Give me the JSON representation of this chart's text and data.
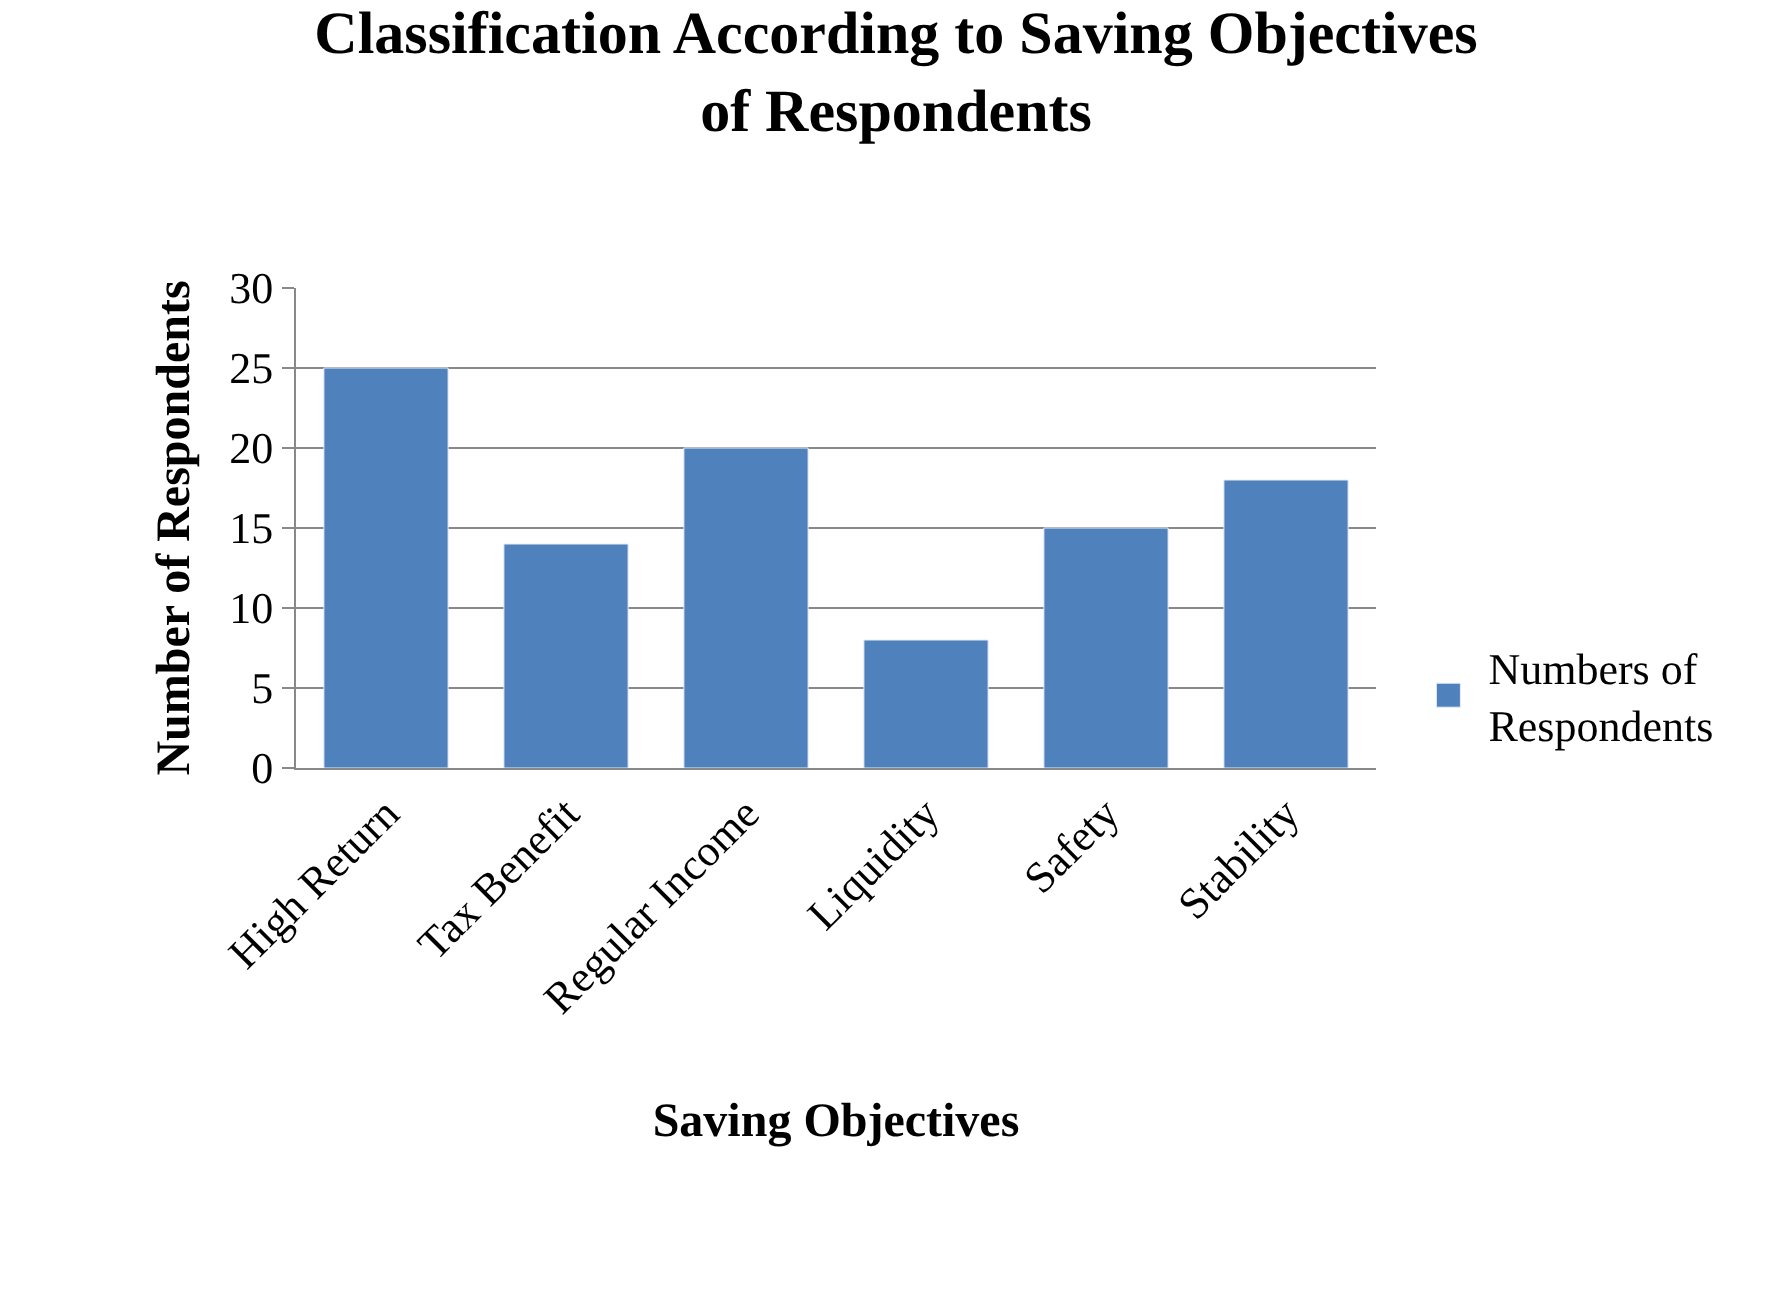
{
  "chart_data": {
    "type": "bar",
    "title": "Classification According to Saving Objectives of Respondents",
    "xlabel": "Saving Objectives",
    "ylabel": "Number of Respondents",
    "categories": [
      "High Return",
      "Tax Benefit",
      "Regular Income",
      "Liquidity",
      "Safety",
      "Stability"
    ],
    "series": [
      {
        "name": "Numbers of Respondents",
        "color": "#4f81bd",
        "values": [
          25,
          14,
          20,
          8,
          15,
          18
        ]
      }
    ],
    "ylim": [
      0,
      30
    ],
    "yticks": [
      0,
      5,
      10,
      15,
      20,
      25,
      30
    ],
    "grid": "y",
    "legend": "right"
  }
}
